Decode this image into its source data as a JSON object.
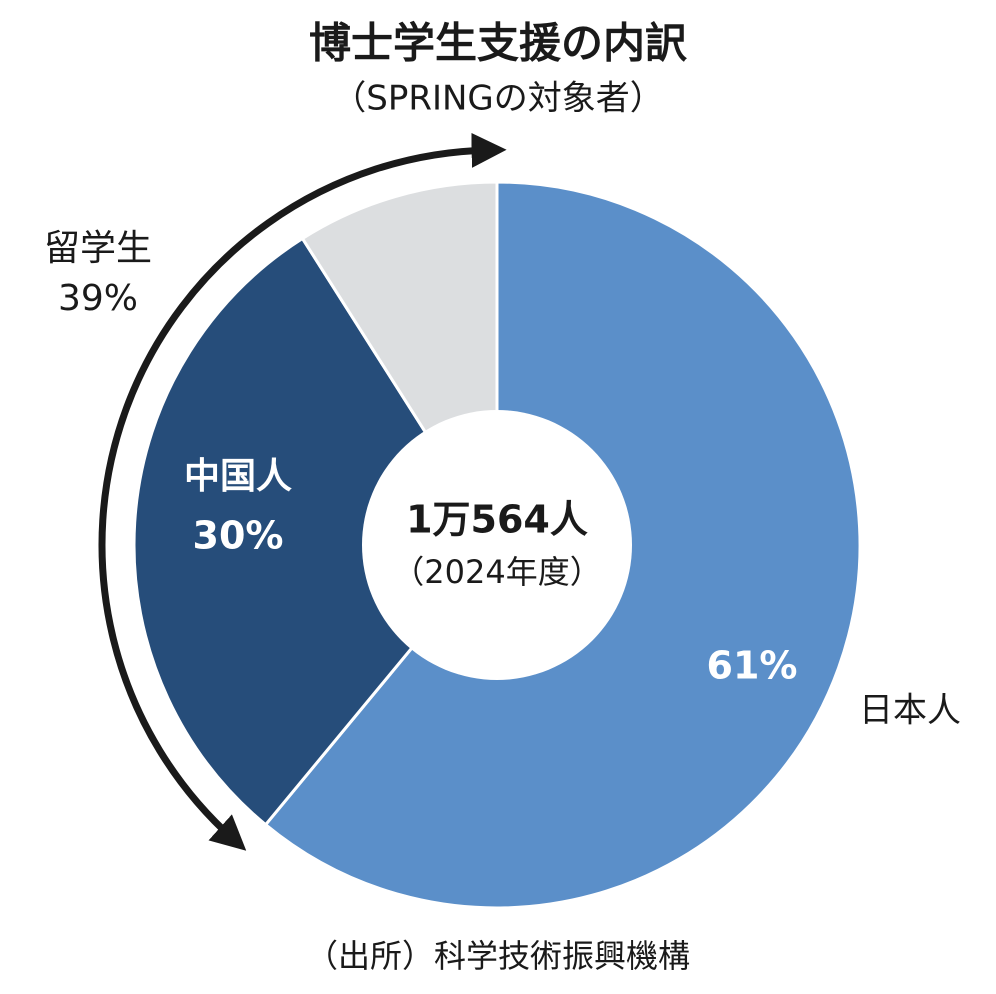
{
  "chart_data": {
    "type": "donut",
    "title": "博士学生支援の内訳",
    "subtitle": "（SPRINGの対象者）",
    "categories": [
      "日本人",
      "中国人",
      null
    ],
    "values": [
      61,
      30,
      9
    ],
    "value_labels": [
      "61%",
      "30%",
      null
    ],
    "colors": [
      "#5b8fc9",
      "#264d7a",
      "#dcdee0"
    ],
    "center_text": [
      "1万564人",
      "（2024年度）"
    ],
    "annotations": [
      {
        "text": "留学生",
        "value": 39,
        "label": "39%"
      }
    ],
    "source": "（出所）科学技術振興機構"
  }
}
